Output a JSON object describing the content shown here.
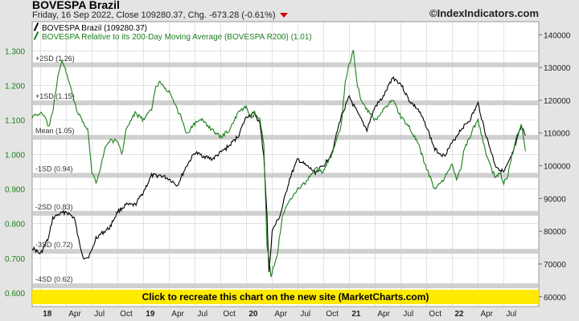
{
  "header": {
    "title": "BOVESPA Brazil",
    "subtitle": "Friday, 16 Sep 2022, Close 109280.37, Chg. -673.28 (-0.61%)",
    "site": "©IndexIndicators.com"
  },
  "banner": {
    "text": "Click to recreate this chart on the new site (MarketCharts.com)"
  },
  "chart_data": {
    "type": "line",
    "x_ticks": [
      "18",
      "Apr",
      "Jul",
      "Oct",
      "19",
      "Apr",
      "Jul",
      "Oct",
      "20",
      "Apr",
      "Jul",
      "Oct",
      "21",
      "Apr",
      "Jul",
      "Oct",
      "22",
      "Apr",
      "Jul"
    ],
    "x_tick_bold": [
      true,
      false,
      false,
      false,
      true,
      false,
      false,
      false,
      true,
      false,
      false,
      false,
      true,
      false,
      false,
      false,
      true,
      false,
      false
    ],
    "y_left_ticks": [
      "1.300",
      "1.200",
      "1.100",
      "1.000",
      "0.900",
      "0.800",
      "0.700",
      "0.600"
    ],
    "y_left_range": [
      0.56,
      1.385
    ],
    "y_right_ticks": [
      "140000",
      "130000",
      "120000",
      "110000",
      "100000",
      "90000",
      "80000",
      "70000",
      "60000"
    ],
    "y_right_range": [
      57000,
      144000
    ],
    "sd_bands": [
      {
        "label": "+2SD (1.26)",
        "value": 1.26
      },
      {
        "label": "+1SD (1.15)",
        "value": 1.15
      },
      {
        "label": "Mean (1.05)",
        "value": 1.05
      },
      {
        "label": "-1SD (0.94)",
        "value": 0.94
      },
      {
        "label": "-2SD (0.83)",
        "value": 0.83
      },
      {
        "label": "-3SD (0.72)",
        "value": 0.72
      },
      {
        "label": "-4SD (0.62)",
        "value": 0.62
      }
    ],
    "legend": [
      "BOVESPA Brazil (109280.37)",
      "BOVESPA Relative to its 200-Day Moving Average (BOVESPA R200) (1.01)"
    ],
    "series": [
      {
        "name": "BOVESPA Brazil (109280.37)",
        "axis": "right",
        "color": "#000000",
        "x": [
          2017.92,
          2018.0,
          2018.08,
          2018.12,
          2018.17,
          2018.25,
          2018.33,
          2018.38,
          2018.42,
          2018.46,
          2018.5,
          2018.54,
          2018.58,
          2018.67,
          2018.75,
          2018.83,
          2018.92,
          2019.0,
          2019.08,
          2019.17,
          2019.25,
          2019.33,
          2019.42,
          2019.5,
          2019.58,
          2019.67,
          2019.75,
          2019.83,
          2019.92,
          2020.0,
          2020.08,
          2020.13,
          2020.17,
          2020.2,
          2020.22,
          2020.25,
          2020.33,
          2020.42,
          2020.5,
          2020.58,
          2020.67,
          2020.75,
          2020.83,
          2020.92,
          2021.0,
          2021.08,
          2021.17,
          2021.25,
          2021.33,
          2021.42,
          2021.5,
          2021.58,
          2021.67,
          2021.75,
          2021.83,
          2021.92,
          2022.0,
          2022.08,
          2022.17,
          2022.25,
          2022.33,
          2022.42,
          2022.5,
          2022.58,
          2022.67,
          2022.71
        ],
        "y": [
          75000,
          73000,
          78000,
          84000,
          85000,
          86000,
          84000,
          76000,
          72000,
          72000,
          74000,
          78000,
          79000,
          81000,
          86000,
          88000,
          88000,
          92000,
          97000,
          97000,
          96000,
          94000,
          100000,
          104000,
          103000,
          102000,
          104000,
          106000,
          109000,
          115000,
          116000,
          113000,
          103000,
          85000,
          67000,
          80000,
          85000,
          96000,
          102000,
          100000,
          98000,
          100000,
          104000,
          115000,
          121000,
          116000,
          111000,
          118000,
          121000,
          127000,
          125000,
          120000,
          117000,
          112000,
          105000,
          103000,
          107000,
          111000,
          114000,
          119000,
          109000,
          100000,
          98000,
          103000,
          112000,
          109280
        ]
      },
      {
        "name": "BOVESPA Relative to its 200-Day Moving Average (BOVESPA R200) (1.01)",
        "axis": "left",
        "color": "#1a7f1a",
        "x": [
          2017.92,
          2018.0,
          2018.04,
          2018.08,
          2018.12,
          2018.17,
          2018.21,
          2018.25,
          2018.3,
          2018.35,
          2018.4,
          2018.46,
          2018.5,
          2018.54,
          2018.58,
          2018.63,
          2018.67,
          2018.75,
          2018.79,
          2018.83,
          2018.88,
          2018.92,
          2019.0,
          2019.08,
          2019.12,
          2019.17,
          2019.25,
          2019.33,
          2019.38,
          2019.42,
          2019.5,
          2019.58,
          2019.67,
          2019.75,
          2019.83,
          2019.92,
          2020.0,
          2020.05,
          2020.08,
          2020.13,
          2020.17,
          2020.2,
          2020.24,
          2020.3,
          2020.35,
          2020.42,
          2020.5,
          2020.58,
          2020.67,
          2020.75,
          2020.83,
          2020.92,
          2020.96,
          2021.0,
          2021.04,
          2021.08,
          2021.12,
          2021.17,
          2021.25,
          2021.33,
          2021.42,
          2021.5,
          2021.58,
          2021.67,
          2021.75,
          2021.83,
          2021.92,
          2022.0,
          2022.04,
          2022.08,
          2022.12,
          2022.17,
          2022.21,
          2022.25,
          2022.29,
          2022.33,
          2022.38,
          2022.42,
          2022.46,
          2022.5,
          2022.54,
          2022.58,
          2022.62,
          2022.67,
          2022.71
        ],
        "y": [
          1.11,
          1.12,
          1.11,
          1.08,
          1.12,
          1.23,
          1.27,
          1.24,
          1.19,
          1.13,
          1.1,
          1.07,
          0.95,
          0.92,
          0.96,
          1.02,
          1.04,
          1.04,
          1.0,
          1.07,
          1.1,
          1.12,
          1.1,
          1.13,
          1.2,
          1.21,
          1.18,
          1.13,
          1.1,
          1.06,
          1.09,
          1.1,
          1.07,
          1.05,
          1.07,
          1.12,
          1.14,
          1.1,
          1.12,
          1.1,
          1.03,
          0.74,
          0.65,
          0.71,
          0.82,
          0.87,
          0.9,
          0.92,
          0.96,
          0.95,
          1.0,
          1.08,
          1.21,
          1.26,
          1.3,
          1.2,
          1.15,
          1.13,
          1.1,
          1.13,
          1.16,
          1.11,
          1.08,
          1.03,
          0.96,
          0.9,
          0.93,
          0.97,
          0.93,
          0.96,
          1.02,
          1.05,
          1.08,
          1.1,
          1.05,
          1.0,
          0.96,
          0.93,
          0.95,
          0.92,
          0.94,
          1.0,
          1.05,
          1.09,
          1.01
        ]
      }
    ],
    "x_range": [
      2017.92,
      2022.84
    ],
    "tick_positions": [
      2018.0,
      2018.25,
      2018.5,
      2018.75,
      2019.0,
      2019.25,
      2019.5,
      2019.75,
      2020.0,
      2020.25,
      2020.5,
      2020.75,
      2021.0,
      2021.25,
      2021.5,
      2021.75,
      2022.0,
      2022.25,
      2022.5
    ],
    "grid": true,
    "colors": {
      "band": "#c8c8c8",
      "plot_bg": "#ffffff",
      "grid": "#d0d0d0",
      "frame": "#999999",
      "banner": "#ffea00",
      "down": "#d00000"
    }
  }
}
